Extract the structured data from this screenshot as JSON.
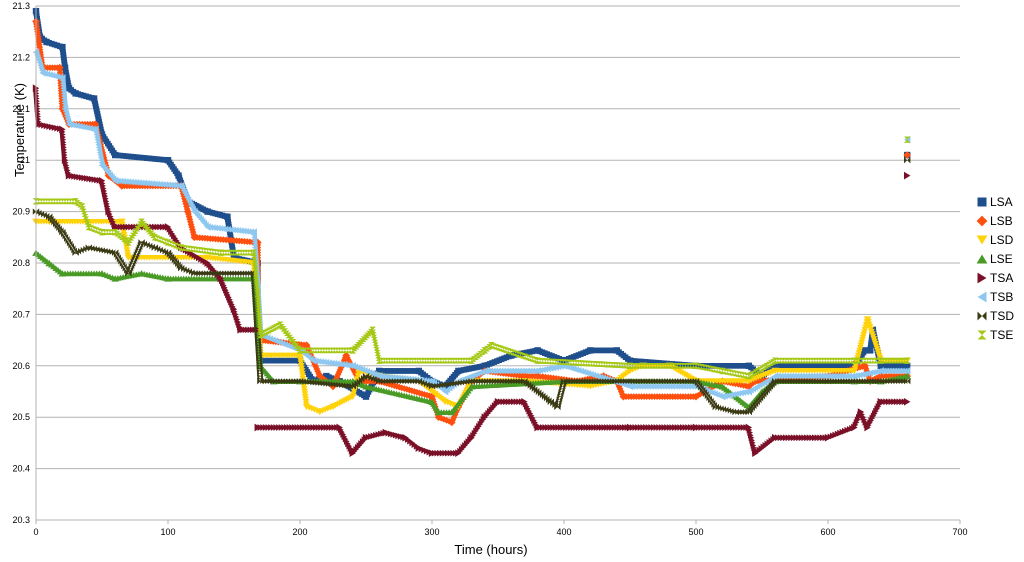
{
  "chart_data": {
    "type": "scatter",
    "xlabel": "Time (hours)",
    "ylabel": "Temperature (K)",
    "xlim": [
      0,
      700
    ],
    "ylim": [
      20.3,
      21.3
    ],
    "xticks": [
      "0",
      "100",
      "200",
      "300",
      "400",
      "500",
      "600",
      "700"
    ],
    "yticks": [
      "20.3",
      "20.4",
      "20.5",
      "20.6",
      "20.7",
      "20.8",
      "20.9",
      "21",
      "21.1",
      "21.2",
      "21.3"
    ],
    "grid": "horizontal",
    "legend_position": "right",
    "series": [
      {
        "name": "LSA",
        "color": "#1f4e8c",
        "marker": "square",
        "points": [
          [
            0,
            21.29
          ],
          [
            3,
            21.24
          ],
          [
            8,
            21.23
          ],
          [
            20,
            21.22
          ],
          [
            22,
            21.18
          ],
          [
            25,
            21.14
          ],
          [
            30,
            21.13
          ],
          [
            44,
            21.12
          ],
          [
            50,
            21.05
          ],
          [
            60,
            21.01
          ],
          [
            100,
            21.0
          ],
          [
            108,
            20.97
          ],
          [
            115,
            20.92
          ],
          [
            130,
            20.9
          ],
          [
            145,
            20.89
          ],
          [
            150,
            20.81
          ],
          [
            168,
            20.8
          ],
          [
            168,
            20.7
          ],
          [
            170,
            20.61
          ],
          [
            200,
            20.61
          ],
          [
            210,
            20.57
          ],
          [
            220,
            20.58
          ],
          [
            230,
            20.57
          ],
          [
            250,
            20.54
          ],
          [
            260,
            20.59
          ],
          [
            290,
            20.59
          ],
          [
            300,
            20.57
          ],
          [
            310,
            20.56
          ],
          [
            320,
            20.59
          ],
          [
            340,
            20.6
          ],
          [
            360,
            20.62
          ],
          [
            380,
            20.63
          ],
          [
            400,
            20.61
          ],
          [
            420,
            20.63
          ],
          [
            440,
            20.63
          ],
          [
            450,
            20.61
          ],
          [
            500,
            20.6
          ],
          [
            540,
            20.6
          ],
          [
            550,
            20.58
          ],
          [
            560,
            20.6
          ],
          [
            620,
            20.6
          ],
          [
            628,
            20.63
          ],
          [
            632,
            20.63
          ],
          [
            634,
            20.67
          ],
          [
            640,
            20.6
          ],
          [
            660,
            20.6
          ],
          [
            660,
            21.01
          ]
        ]
      },
      {
        "name": "LSB",
        "color": "#ff4f0f",
        "marker": "diamond",
        "points": [
          [
            0,
            21.27
          ],
          [
            5,
            21.18
          ],
          [
            18,
            21.18
          ],
          [
            20,
            21.1
          ],
          [
            25,
            21.07
          ],
          [
            45,
            21.07
          ],
          [
            55,
            20.97
          ],
          [
            65,
            20.95
          ],
          [
            110,
            20.95
          ],
          [
            115,
            20.9
          ],
          [
            120,
            20.85
          ],
          [
            168,
            20.84
          ],
          [
            168,
            20.71
          ],
          [
            170,
            20.65
          ],
          [
            205,
            20.64
          ],
          [
            215,
            20.58
          ],
          [
            225,
            20.56
          ],
          [
            235,
            20.62
          ],
          [
            245,
            20.57
          ],
          [
            260,
            20.57
          ],
          [
            300,
            20.54
          ],
          [
            305,
            20.5
          ],
          [
            315,
            20.49
          ],
          [
            320,
            20.52
          ],
          [
            330,
            20.57
          ],
          [
            340,
            20.59
          ],
          [
            370,
            20.58
          ],
          [
            380,
            20.58
          ],
          [
            410,
            20.57
          ],
          [
            430,
            20.58
          ],
          [
            440,
            20.57
          ],
          [
            445,
            20.54
          ],
          [
            500,
            20.54
          ],
          [
            520,
            20.57
          ],
          [
            540,
            20.56
          ],
          [
            545,
            20.57
          ],
          [
            600,
            20.58
          ],
          [
            628,
            20.6
          ],
          [
            632,
            20.57
          ],
          [
            640,
            20.58
          ],
          [
            660,
            20.58
          ],
          [
            660,
            21.01
          ]
        ]
      },
      {
        "name": "LSD",
        "color": "#ffd20a",
        "marker": "triangle-down",
        "points": [
          [
            0,
            20.88
          ],
          [
            10,
            20.88
          ],
          [
            65,
            20.88
          ],
          [
            70,
            20.81
          ],
          [
            130,
            20.81
          ],
          [
            165,
            20.8
          ],
          [
            170,
            20.62
          ],
          [
            200,
            20.62
          ],
          [
            205,
            20.52
          ],
          [
            215,
            20.51
          ],
          [
            225,
            20.52
          ],
          [
            240,
            20.54
          ],
          [
            245,
            20.59
          ],
          [
            260,
            20.58
          ],
          [
            290,
            20.57
          ],
          [
            310,
            20.53
          ],
          [
            320,
            20.52
          ],
          [
            330,
            20.57
          ],
          [
            370,
            20.57
          ],
          [
            420,
            20.56
          ],
          [
            440,
            20.57
          ],
          [
            450,
            20.59
          ],
          [
            460,
            20.6
          ],
          [
            480,
            20.6
          ],
          [
            500,
            20.57
          ],
          [
            540,
            20.57
          ],
          [
            560,
            20.59
          ],
          [
            620,
            20.59
          ],
          [
            630,
            20.69
          ],
          [
            640,
            20.61
          ],
          [
            660,
            20.61
          ]
        ]
      },
      {
        "name": "LSE",
        "color": "#4a9a26",
        "marker": "triangle-up",
        "points": [
          [
            0,
            20.82
          ],
          [
            10,
            20.8
          ],
          [
            20,
            20.78
          ],
          [
            50,
            20.78
          ],
          [
            60,
            20.77
          ],
          [
            80,
            20.78
          ],
          [
            100,
            20.77
          ],
          [
            165,
            20.77
          ],
          [
            170,
            20.6
          ],
          [
            180,
            20.57
          ],
          [
            200,
            20.57
          ],
          [
            215,
            20.57
          ],
          [
            240,
            20.57
          ],
          [
            250,
            20.56
          ],
          [
            300,
            20.53
          ],
          [
            305,
            20.51
          ],
          [
            315,
            20.51
          ],
          [
            330,
            20.56
          ],
          [
            400,
            20.57
          ],
          [
            450,
            20.57
          ],
          [
            500,
            20.57
          ],
          [
            520,
            20.56
          ],
          [
            540,
            20.52
          ],
          [
            550,
            20.55
          ],
          [
            560,
            20.57
          ],
          [
            620,
            20.57
          ],
          [
            640,
            20.57
          ],
          [
            660,
            20.58
          ]
        ]
      },
      {
        "name": "TSA",
        "color": "#7a1028",
        "marker": "triangle-right",
        "points": [
          [
            0,
            21.14
          ],
          [
            2,
            21.07
          ],
          [
            20,
            21.06
          ],
          [
            22,
            21.0
          ],
          [
            25,
            20.97
          ],
          [
            50,
            20.96
          ],
          [
            55,
            20.9
          ],
          [
            60,
            20.87
          ],
          [
            100,
            20.87
          ],
          [
            110,
            20.83
          ],
          [
            130,
            20.8
          ],
          [
            140,
            20.77
          ],
          [
            150,
            20.71
          ],
          [
            155,
            20.67
          ],
          [
            168,
            20.67
          ],
          [
            168,
            20.48
          ],
          [
            230,
            20.48
          ],
          [
            240,
            20.43
          ],
          [
            250,
            20.46
          ],
          [
            265,
            20.47
          ],
          [
            280,
            20.46
          ],
          [
            290,
            20.44
          ],
          [
            300,
            20.43
          ],
          [
            320,
            20.43
          ],
          [
            330,
            20.46
          ],
          [
            340,
            20.5
          ],
          [
            350,
            20.53
          ],
          [
            370,
            20.53
          ],
          [
            380,
            20.48
          ],
          [
            450,
            20.48
          ],
          [
            500,
            20.48
          ],
          [
            540,
            20.48
          ],
          [
            545,
            20.43
          ],
          [
            560,
            20.46
          ],
          [
            600,
            20.46
          ],
          [
            620,
            20.48
          ],
          [
            625,
            20.51
          ],
          [
            630,
            20.48
          ],
          [
            640,
            20.53
          ],
          [
            660,
            20.53
          ],
          [
            660,
            20.97
          ]
        ]
      },
      {
        "name": "TSB",
        "color": "#8ec8f0",
        "marker": "triangle-left",
        "points": [
          [
            0,
            21.21
          ],
          [
            5,
            21.17
          ],
          [
            20,
            21.16
          ],
          [
            22,
            21.1
          ],
          [
            25,
            21.07
          ],
          [
            45,
            21.06
          ],
          [
            50,
            20.99
          ],
          [
            60,
            20.96
          ],
          [
            110,
            20.95
          ],
          [
            120,
            20.9
          ],
          [
            130,
            20.87
          ],
          [
            165,
            20.86
          ],
          [
            168,
            20.75
          ],
          [
            170,
            20.66
          ],
          [
            200,
            20.63
          ],
          [
            210,
            20.61
          ],
          [
            240,
            20.6
          ],
          [
            260,
            20.58
          ],
          [
            300,
            20.57
          ],
          [
            310,
            20.55
          ],
          [
            320,
            20.57
          ],
          [
            340,
            20.59
          ],
          [
            380,
            20.59
          ],
          [
            400,
            20.6
          ],
          [
            450,
            20.56
          ],
          [
            500,
            20.56
          ],
          [
            520,
            20.54
          ],
          [
            540,
            20.55
          ],
          [
            560,
            20.58
          ],
          [
            620,
            20.58
          ],
          [
            640,
            20.59
          ],
          [
            660,
            20.59
          ],
          [
            660,
            21.04
          ]
        ]
      },
      {
        "name": "TSD",
        "color": "#3a3a14",
        "marker": "bowtie",
        "points": [
          [
            0,
            20.9
          ],
          [
            10,
            20.89
          ],
          [
            20,
            20.86
          ],
          [
            30,
            20.82
          ],
          [
            40,
            20.83
          ],
          [
            60,
            20.82
          ],
          [
            70,
            20.78
          ],
          [
            80,
            20.84
          ],
          [
            90,
            20.83
          ],
          [
            100,
            20.82
          ],
          [
            110,
            20.79
          ],
          [
            120,
            20.78
          ],
          [
            165,
            20.78
          ],
          [
            170,
            20.57
          ],
          [
            200,
            20.57
          ],
          [
            240,
            20.56
          ],
          [
            250,
            20.58
          ],
          [
            260,
            20.57
          ],
          [
            290,
            20.57
          ],
          [
            300,
            20.56
          ],
          [
            330,
            20.57
          ],
          [
            370,
            20.57
          ],
          [
            390,
            20.53
          ],
          [
            395,
            20.52
          ],
          [
            400,
            20.57
          ],
          [
            500,
            20.57
          ],
          [
            515,
            20.52
          ],
          [
            530,
            20.51
          ],
          [
            540,
            20.51
          ],
          [
            560,
            20.57
          ],
          [
            600,
            20.57
          ],
          [
            640,
            20.57
          ],
          [
            660,
            20.57
          ],
          [
            660,
            21.0
          ]
        ]
      },
      {
        "name": "TSE",
        "color": "#a4c814",
        "marker": "hourglass",
        "points": [
          [
            0,
            20.92
          ],
          [
            30,
            20.92
          ],
          [
            35,
            20.91
          ],
          [
            40,
            20.87
          ],
          [
            50,
            20.86
          ],
          [
            60,
            20.86
          ],
          [
            70,
            20.84
          ],
          [
            80,
            20.88
          ],
          [
            90,
            20.85
          ],
          [
            100,
            20.84
          ],
          [
            110,
            20.83
          ],
          [
            140,
            20.82
          ],
          [
            165,
            20.82
          ],
          [
            168,
            20.74
          ],
          [
            170,
            20.66
          ],
          [
            185,
            20.68
          ],
          [
            200,
            20.63
          ],
          [
            240,
            20.63
          ],
          [
            255,
            20.67
          ],
          [
            260,
            20.61
          ],
          [
            330,
            20.61
          ],
          [
            340,
            20.63
          ],
          [
            345,
            20.64
          ],
          [
            380,
            20.61
          ],
          [
            450,
            20.6
          ],
          [
            500,
            20.6
          ],
          [
            520,
            20.59
          ],
          [
            540,
            20.58
          ],
          [
            560,
            20.61
          ],
          [
            620,
            20.61
          ],
          [
            640,
            20.61
          ],
          [
            660,
            20.61
          ],
          [
            660,
            21.04
          ]
        ]
      }
    ]
  }
}
